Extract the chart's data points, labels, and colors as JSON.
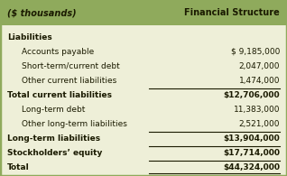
{
  "header_left": "($ thousands)",
  "header_right": "Financial Structure",
  "header_bg": "#8faa5c",
  "body_bg": "#eeefd8",
  "border_color": "#8faa5c",
  "rows": [
    {
      "label": "Liabilities",
      "value": "",
      "bold_label": true,
      "bold_value": false,
      "indent": 0,
      "top_line": false
    },
    {
      "label": "Accounts payable",
      "value": "$ 9,185,000",
      "bold_label": false,
      "bold_value": false,
      "indent": 1,
      "top_line": false
    },
    {
      "label": "Short-term/current debt",
      "value": "2,047,000",
      "bold_label": false,
      "bold_value": false,
      "indent": 1,
      "top_line": false
    },
    {
      "label": "Other current liabilities",
      "value": "1,474,000",
      "bold_label": false,
      "bold_value": false,
      "indent": 1,
      "top_line": false
    },
    {
      "label": "Total current liabilities",
      "value": "$12,706,000",
      "bold_label": true,
      "bold_value": true,
      "indent": 0,
      "top_line": true
    },
    {
      "label": "Long-term debt",
      "value": "11,383,000",
      "bold_label": false,
      "bold_value": false,
      "indent": 1,
      "top_line": false
    },
    {
      "label": "Other long-term liabilities",
      "value": "2,521,000",
      "bold_label": false,
      "bold_value": false,
      "indent": 1,
      "top_line": false
    },
    {
      "label": "Long-term liabilities",
      "value": "$13,904,000",
      "bold_label": true,
      "bold_value": true,
      "indent": 0,
      "top_line": true
    },
    {
      "label": "Stockholders’ equity",
      "value": "$17,714,000",
      "bold_label": true,
      "bold_value": true,
      "indent": 0,
      "top_line": true
    },
    {
      "label": "Total",
      "value": "$44,324,000",
      "bold_label": true,
      "bold_value": true,
      "indent": 0,
      "top_line": true,
      "double_bottom": true
    }
  ],
  "figsize": [
    3.18,
    1.95
  ],
  "dpi": 100,
  "header_fontsize": 7.0,
  "body_fontsize": 6.5,
  "label_color": "#1a1a00",
  "value_color": "#1a1a00",
  "line_color": "#1a1a00",
  "border_lw": 2.5,
  "line_lw": 0.8
}
